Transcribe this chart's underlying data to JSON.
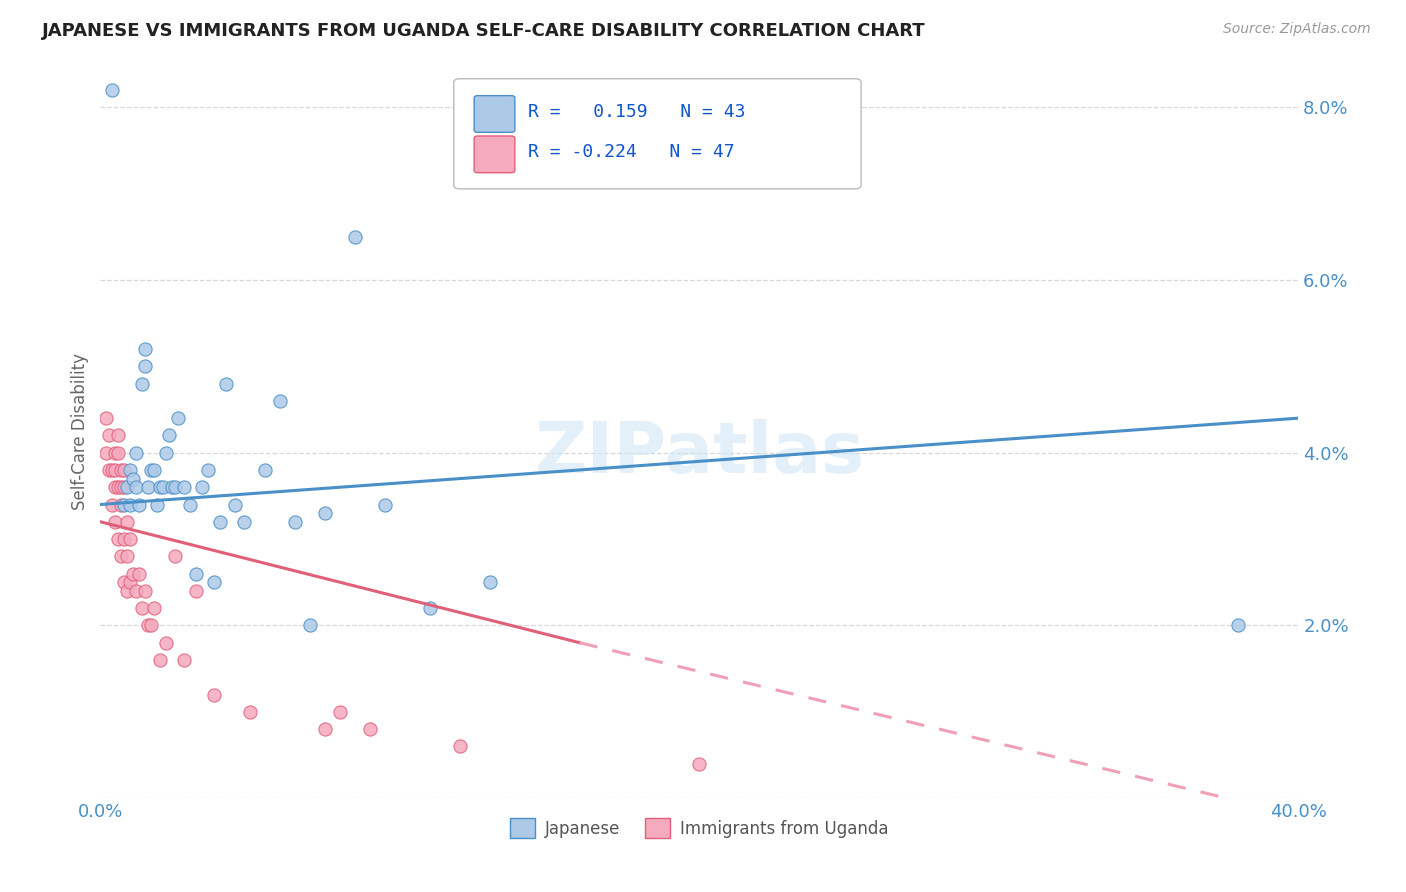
{
  "title": "JAPANESE VS IMMIGRANTS FROM UGANDA SELF-CARE DISABILITY CORRELATION CHART",
  "source": "Source: ZipAtlas.com",
  "ylabel": "Self-Care Disability",
  "xlim": [
    0.0,
    0.4
  ],
  "ylim": [
    0.0,
    0.085
  ],
  "yticks": [
    0.0,
    0.02,
    0.04,
    0.06,
    0.08
  ],
  "ytick_labels": [
    "",
    "2.0%",
    "4.0%",
    "6.0%",
    "8.0%"
  ],
  "xticks": [
    0.0,
    0.1,
    0.2,
    0.3,
    0.4
  ],
  "xtick_labels": [
    "0.0%",
    "",
    "",
    "",
    "40.0%"
  ],
  "japanese_R": 0.159,
  "japanese_N": 43,
  "uganda_R": -0.224,
  "uganda_N": 47,
  "japanese_color": "#adc9e8",
  "uganda_color": "#f5aabe",
  "japanese_line_color": "#4a90c8",
  "uganda_line_solid_color": "#e0607a",
  "uganda_line_dashed_color": "#f0a0b5",
  "watermark": "ZIPatlas",
  "background_color": "#ffffff",
  "grid_color": "#d8d8d8",
  "jp_line_start_x": 0.0,
  "jp_line_start_y": 0.034,
  "jp_line_end_x": 0.4,
  "jp_line_end_y": 0.044,
  "ug_line_start_x": 0.0,
  "ug_line_start_y": 0.032,
  "ug_line_solid_end_x": 0.16,
  "ug_line_solid_end_y": 0.018,
  "ug_line_dashed_end_x": 0.4,
  "ug_line_dashed_end_y": -0.002,
  "japanese_x": [
    0.004,
    0.008,
    0.009,
    0.01,
    0.01,
    0.011,
    0.012,
    0.012,
    0.013,
    0.014,
    0.015,
    0.015,
    0.016,
    0.017,
    0.018,
    0.019,
    0.02,
    0.021,
    0.022,
    0.023,
    0.024,
    0.025,
    0.026,
    0.028,
    0.03,
    0.032,
    0.034,
    0.036,
    0.038,
    0.04,
    0.042,
    0.045,
    0.048,
    0.055,
    0.06,
    0.065,
    0.07,
    0.075,
    0.085,
    0.095,
    0.11,
    0.13,
    0.38
  ],
  "japanese_y": [
    0.082,
    0.034,
    0.036,
    0.038,
    0.034,
    0.037,
    0.036,
    0.04,
    0.034,
    0.048,
    0.052,
    0.05,
    0.036,
    0.038,
    0.038,
    0.034,
    0.036,
    0.036,
    0.04,
    0.042,
    0.036,
    0.036,
    0.044,
    0.036,
    0.034,
    0.026,
    0.036,
    0.038,
    0.025,
    0.032,
    0.048,
    0.034,
    0.032,
    0.038,
    0.046,
    0.032,
    0.02,
    0.033,
    0.065,
    0.034,
    0.022,
    0.025,
    0.02
  ],
  "uganda_x": [
    0.002,
    0.002,
    0.003,
    0.003,
    0.004,
    0.004,
    0.005,
    0.005,
    0.005,
    0.005,
    0.006,
    0.006,
    0.006,
    0.006,
    0.007,
    0.007,
    0.007,
    0.007,
    0.008,
    0.008,
    0.008,
    0.008,
    0.009,
    0.009,
    0.009,
    0.01,
    0.01,
    0.011,
    0.012,
    0.013,
    0.014,
    0.015,
    0.016,
    0.017,
    0.018,
    0.02,
    0.022,
    0.025,
    0.028,
    0.032,
    0.038,
    0.05,
    0.075,
    0.08,
    0.09,
    0.12,
    0.2
  ],
  "uganda_y": [
    0.044,
    0.04,
    0.042,
    0.038,
    0.038,
    0.034,
    0.04,
    0.038,
    0.036,
    0.032,
    0.042,
    0.04,
    0.036,
    0.03,
    0.038,
    0.036,
    0.034,
    0.028,
    0.038,
    0.036,
    0.03,
    0.025,
    0.032,
    0.028,
    0.024,
    0.03,
    0.025,
    0.026,
    0.024,
    0.026,
    0.022,
    0.024,
    0.02,
    0.02,
    0.022,
    0.016,
    0.018,
    0.028,
    0.016,
    0.024,
    0.012,
    0.01,
    0.008,
    0.01,
    0.008,
    0.006,
    0.004
  ]
}
